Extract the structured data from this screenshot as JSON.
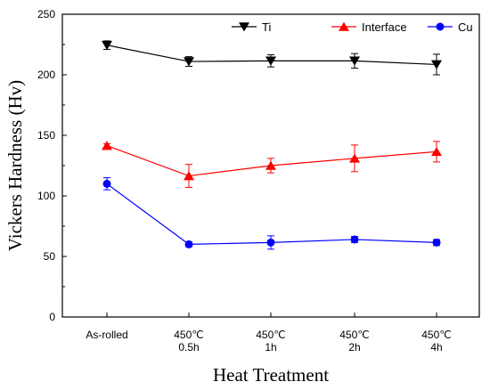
{
  "chart_data": {
    "type": "line",
    "title": "",
    "xlabel": "Heat Treatment",
    "ylabel": "Vickers Hardness (Hv)",
    "ylim": [
      0,
      250
    ],
    "yticks": [
      0,
      50,
      100,
      150,
      200,
      250
    ],
    "categories": [
      [
        "As-rolled"
      ],
      [
        "450℃",
        "0.5h"
      ],
      [
        "450℃",
        "1h"
      ],
      [
        "450℃",
        "2h"
      ],
      [
        "450℃",
        "4h"
      ]
    ],
    "grid": false,
    "legend_position": "top-right",
    "series": [
      {
        "name": "Ti",
        "color": "#000000",
        "marker": "triangle-down",
        "values": [
          224.5,
          211,
          211.5,
          211.5,
          208.5
        ],
        "errors": [
          3.5,
          4,
          5,
          6,
          8.5
        ]
      },
      {
        "name": "Interface",
        "color": "#ff0000",
        "marker": "triangle-up",
        "values": [
          141.5,
          116.5,
          125,
          131,
          136.5
        ],
        "errors": [
          1.5,
          9.5,
          6,
          11,
          8.5
        ]
      },
      {
        "name": "Cu",
        "color": "#0000ff",
        "marker": "circle",
        "values": [
          110,
          60,
          61.5,
          64,
          61.5
        ],
        "errors": [
          5,
          2,
          5.5,
          2.5,
          2.5
        ]
      }
    ]
  }
}
